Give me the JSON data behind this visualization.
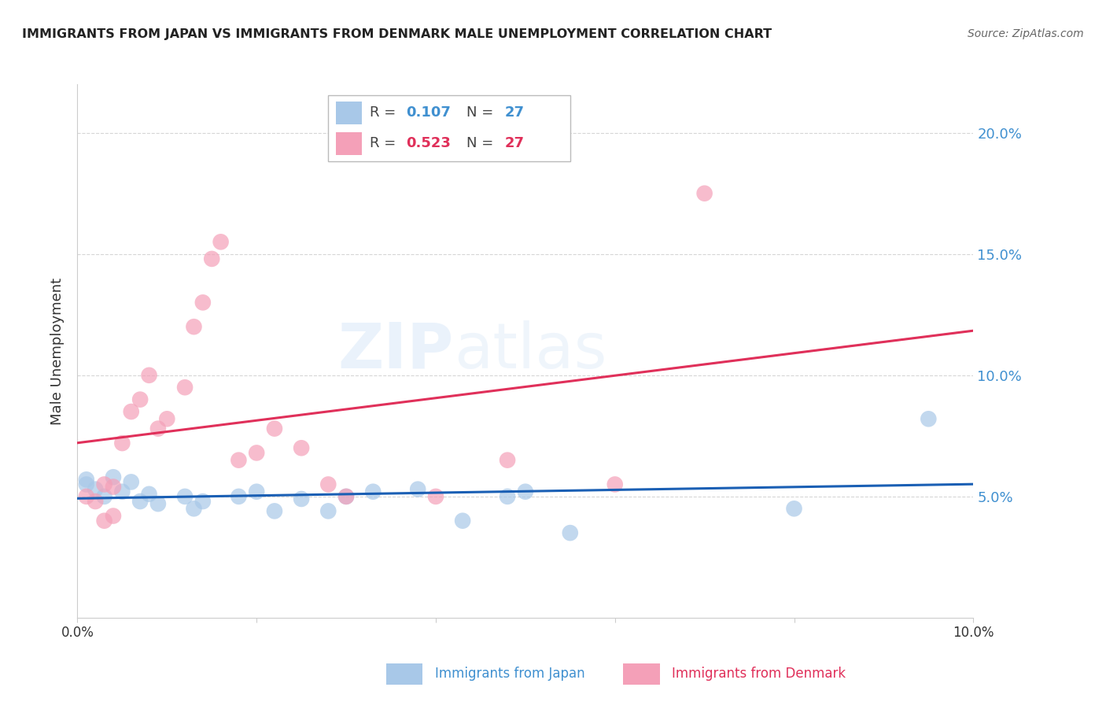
{
  "title": "IMMIGRANTS FROM JAPAN VS IMMIGRANTS FROM DENMARK MALE UNEMPLOYMENT CORRELATION CHART",
  "source": "Source: ZipAtlas.com",
  "ylabel": "Male Unemployment",
  "xlabel_japan": "Immigrants from Japan",
  "xlabel_denmark": "Immigrants from Denmark",
  "r_japan": 0.107,
  "r_denmark": 0.523,
  "n_japan": 27,
  "n_denmark": 27,
  "xlim": [
    0.0,
    0.1
  ],
  "ylim": [
    0.0,
    0.22
  ],
  "color_japan": "#a8c8e8",
  "color_denmark": "#f4a0b8",
  "trend_japan_color": "#1a5fb4",
  "trend_denmark_color": "#e0305a",
  "dashed_line_color": "#c8b0b8",
  "japan_x": [
    0.001,
    0.001,
    0.002,
    0.003,
    0.004,
    0.005,
    0.006,
    0.007,
    0.008,
    0.009,
    0.012,
    0.013,
    0.014,
    0.018,
    0.02,
    0.022,
    0.025,
    0.028,
    0.03,
    0.033,
    0.038,
    0.043,
    0.048,
    0.05,
    0.055,
    0.08,
    0.095
  ],
  "japan_y": [
    0.057,
    0.055,
    0.053,
    0.05,
    0.058,
    0.052,
    0.056,
    0.048,
    0.051,
    0.047,
    0.05,
    0.045,
    0.048,
    0.05,
    0.052,
    0.044,
    0.049,
    0.044,
    0.05,
    0.052,
    0.053,
    0.04,
    0.05,
    0.052,
    0.035,
    0.045,
    0.082
  ],
  "denmark_x": [
    0.001,
    0.002,
    0.003,
    0.003,
    0.004,
    0.004,
    0.005,
    0.006,
    0.007,
    0.008,
    0.009,
    0.01,
    0.012,
    0.013,
    0.014,
    0.015,
    0.016,
    0.018,
    0.02,
    0.022,
    0.025,
    0.028,
    0.03,
    0.04,
    0.048,
    0.06,
    0.07
  ],
  "denmark_y": [
    0.05,
    0.048,
    0.055,
    0.04,
    0.054,
    0.042,
    0.072,
    0.085,
    0.09,
    0.1,
    0.078,
    0.082,
    0.095,
    0.12,
    0.13,
    0.148,
    0.155,
    0.065,
    0.068,
    0.078,
    0.07,
    0.055,
    0.05,
    0.05,
    0.065,
    0.055,
    0.175
  ]
}
